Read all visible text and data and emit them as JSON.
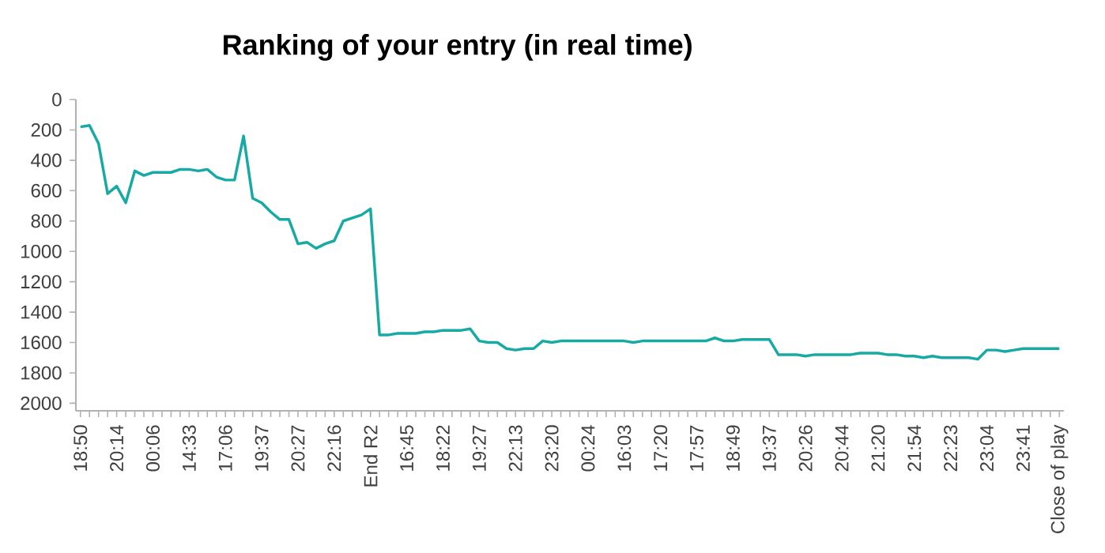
{
  "chart_data": {
    "type": "line",
    "title": "Ranking of your entry (in real time)",
    "categories": [
      "18:50",
      null,
      null,
      null,
      "20:14",
      null,
      null,
      null,
      "00:06",
      null,
      null,
      null,
      "14:33",
      null,
      null,
      null,
      "17:06",
      null,
      null,
      null,
      "19:37",
      null,
      null,
      null,
      "20:27",
      null,
      null,
      null,
      "22:16",
      null,
      null,
      null,
      "End R2",
      null,
      null,
      null,
      "16:45",
      null,
      null,
      null,
      "18:22",
      null,
      null,
      null,
      "19:27",
      null,
      null,
      null,
      "22:13",
      null,
      null,
      null,
      "23:20",
      null,
      null,
      null,
      "00:24",
      null,
      null,
      null,
      "16:03",
      null,
      null,
      null,
      "17:20",
      null,
      null,
      null,
      "17:57",
      null,
      null,
      null,
      "18:49",
      null,
      null,
      null,
      "19:37",
      null,
      null,
      null,
      "20:26",
      null,
      null,
      null,
      "20:44",
      null,
      null,
      null,
      "21:20",
      null,
      null,
      null,
      "21:54",
      null,
      null,
      null,
      "22:23",
      null,
      null,
      null,
      "23:04",
      null,
      null,
      null,
      "23:41",
      null,
      null,
      null,
      "Close of play"
    ],
    "series": [
      {
        "color": "#17aaa5",
        "values": [
          180,
          170,
          290,
          620,
          570,
          680,
          470,
          500,
          480,
          480,
          480,
          460,
          460,
          470,
          460,
          510,
          530,
          530,
          240,
          650,
          680,
          740,
          790,
          790,
          950,
          940,
          980,
          950,
          930,
          800,
          780,
          760,
          720,
          1550,
          1550,
          1540,
          1540,
          1540,
          1530,
          1530,
          1520,
          1520,
          1520,
          1510,
          1590,
          1600,
          1600,
          1640,
          1650,
          1640,
          1640,
          1590,
          1600,
          1590,
          1590,
          1590,
          1590,
          1590,
          1590,
          1590,
          1590,
          1600,
          1590,
          1590,
          1590,
          1590,
          1590,
          1590,
          1590,
          1590,
          1570,
          1590,
          1590,
          1580,
          1580,
          1580,
          1580,
          1680,
          1680,
          1680,
          1690,
          1680,
          1680,
          1680,
          1680,
          1680,
          1670,
          1670,
          1670,
          1680,
          1680,
          1690,
          1690,
          1700,
          1690,
          1700,
          1700,
          1700,
          1700,
          1710,
          1650,
          1650,
          1660,
          1650,
          1640,
          1640,
          1640,
          1640,
          1640
        ]
      }
    ],
    "ylim": [
      2050,
      0
    ],
    "yticks": [
      0,
      200,
      400,
      600,
      800,
      1000,
      1200,
      1400,
      1600,
      1800,
      2000
    ],
    "marker": "none",
    "line_style": "solid"
  }
}
